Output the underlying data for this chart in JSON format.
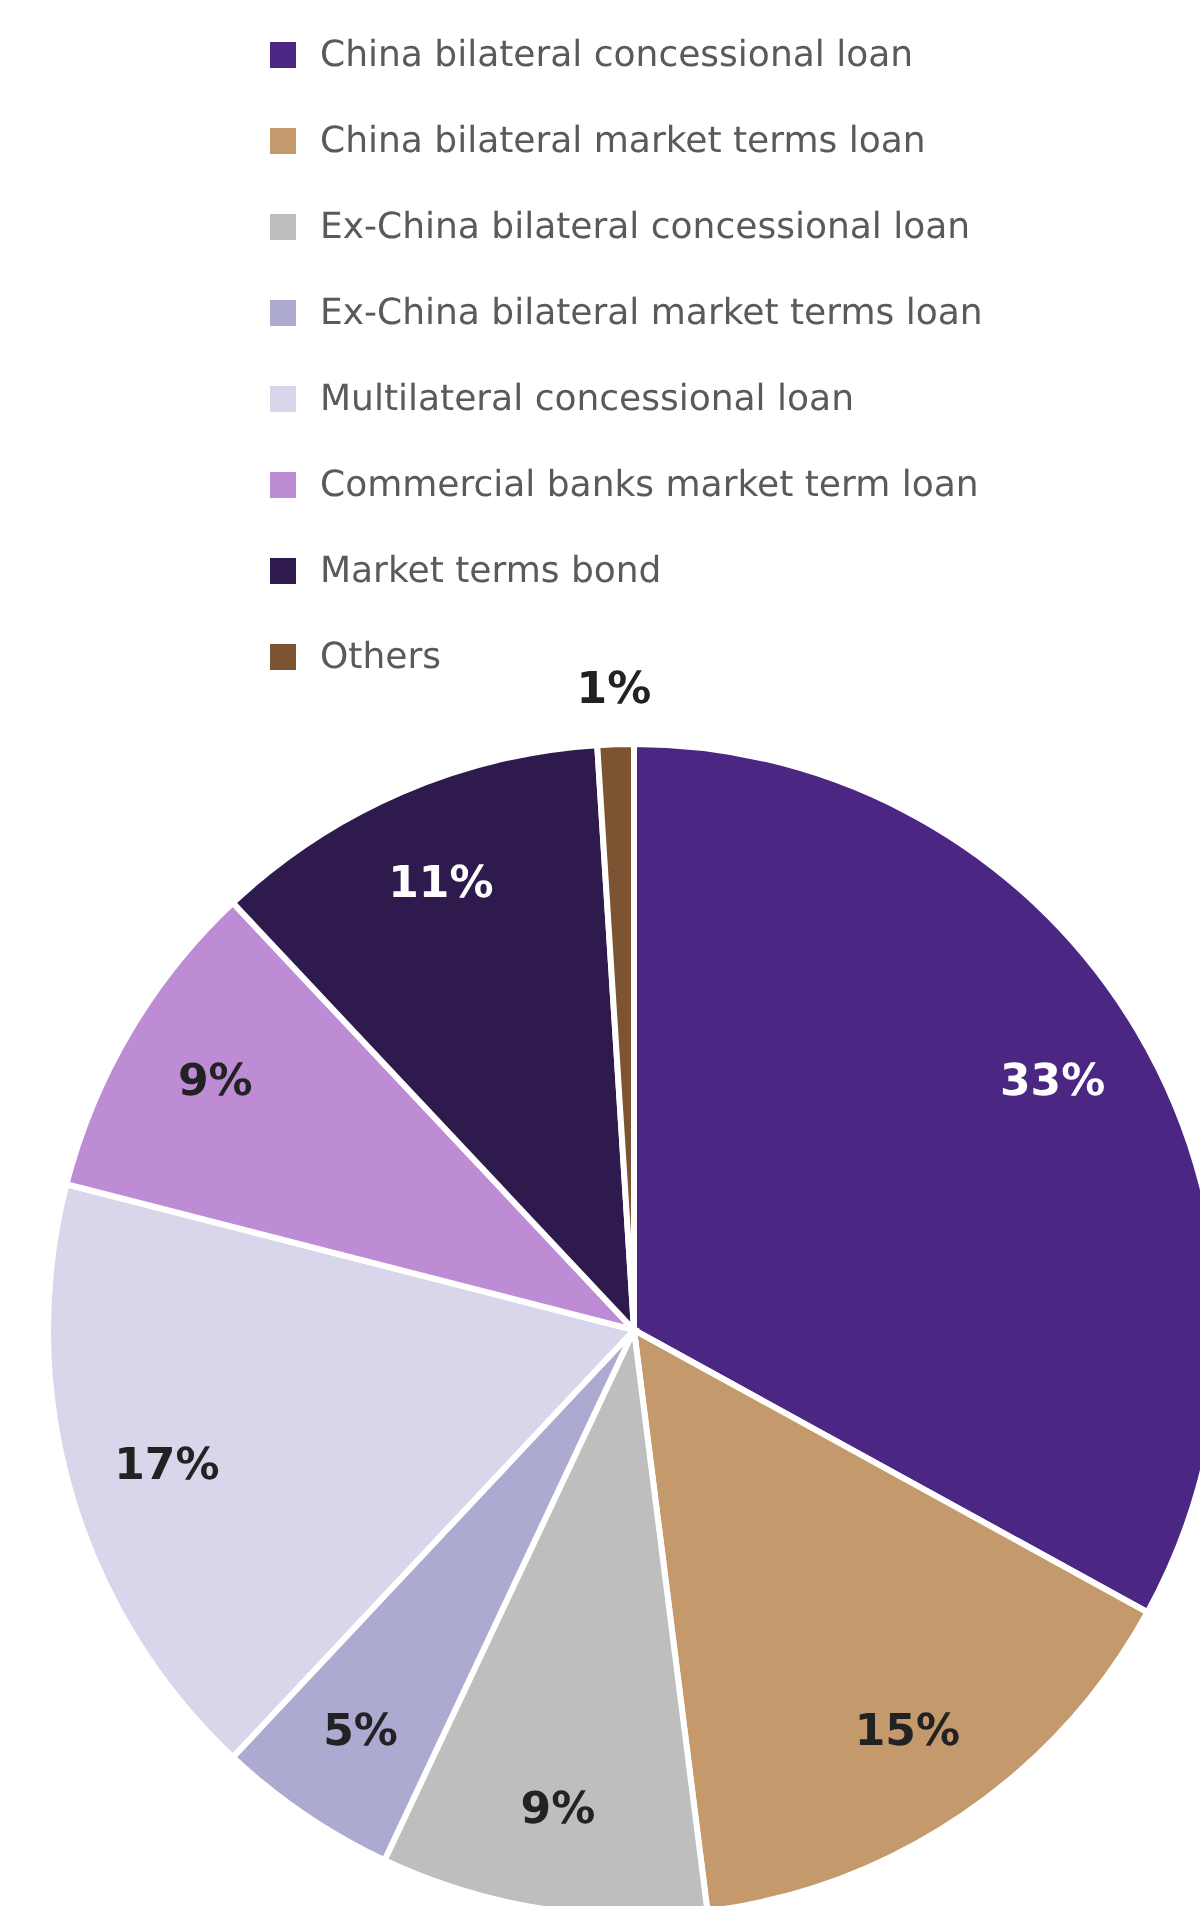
{
  "chart_data": {
    "type": "pie",
    "categories": [
      "China bilateral concessional loan",
      "China bilateral market terms loan",
      "Ex-China bilateral concessional loan",
      "Ex-China bilateral market terms loan",
      "Multilateral concessional loan",
      "Commercial banks market term loan",
      "Market terms bond",
      "Others"
    ],
    "values": [
      33,
      15,
      9,
      5,
      17,
      9,
      11,
      1
    ],
    "colors": [
      "#4b2683",
      "#c49a6c",
      "#bebebe",
      "#acaad0",
      "#d9d5ea",
      "#be8cd4",
      "#2e1a4c",
      "#7d5431"
    ],
    "value_labels": [
      "33%",
      "15%",
      "9%",
      "5%",
      "17%",
      "9%",
      "11%",
      "1%"
    ],
    "legend": "top"
  }
}
